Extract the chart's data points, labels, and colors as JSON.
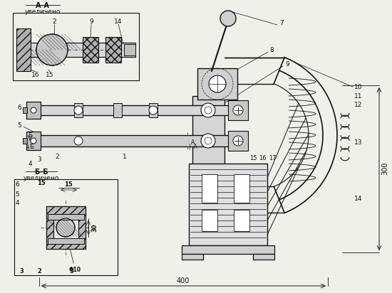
{
  "bg_color": "#f0f0eb",
  "lc": "#111111",
  "fig_w": 5.5,
  "fig_h": 4.12,
  "dpi": 100,
  "AA_label": "А–А",
  "AA_sub": "увеличено",
  "BB_label": "Б–Б",
  "BB_sub": "увеличено",
  "d400": "400",
  "d300": "300",
  "dPhi10": "Φ10",
  "d15": "15",
  "d30": "30",
  "d2": "2",
  "d3": "3"
}
